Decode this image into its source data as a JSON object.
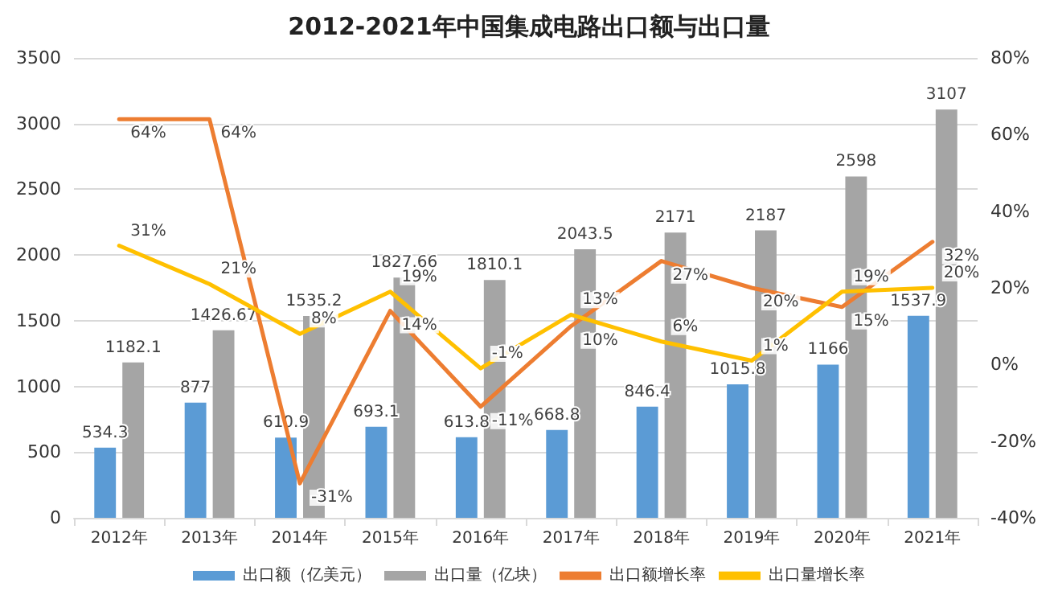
{
  "chart_data": {
    "type": "bar",
    "title": "2012-2021年中国集成电路出口额与出口量",
    "categories": [
      "2012年",
      "2013年",
      "2014年",
      "2015年",
      "2016年",
      "2017年",
      "2018年",
      "2019年",
      "2020年",
      "2021年"
    ],
    "series": [
      {
        "name": "出口额（亿美元）",
        "color": "#5b9bd5",
        "values": [
          534.3,
          877,
          610.9,
          693.1,
          613.8,
          668.8,
          846.4,
          1015.8,
          1166,
          1537.9
        ],
        "value_labels": [
          "534.3",
          "877",
          "610.9",
          "693.1",
          "613.8",
          "668.8",
          "846.4",
          "1015.8",
          "1166",
          "1537.9"
        ]
      },
      {
        "name": "出口量（亿块）",
        "color": "#a5a5a5",
        "values": [
          1182.1,
          1426.67,
          1535.2,
          1827.66,
          1810.1,
          2043.5,
          2171,
          2187,
          2598,
          3107
        ],
        "value_labels": [
          "1182.1",
          "1426.67",
          "1535.2",
          "1827.66",
          "1810.1",
          "2043.5",
          "2171",
          "2187",
          "2598",
          "3107"
        ]
      },
      {
        "name": "出口额增长率",
        "type": "line",
        "axis": "y2",
        "color": "#ed7d31",
        "values": [
          64,
          64,
          -31,
          14,
          -11,
          10,
          27,
          20,
          15,
          32
        ],
        "value_labels": [
          "64%",
          "64%",
          "-31%",
          "14%",
          "-11%",
          "10%",
          "27%",
          "20%",
          "15%",
          "32%"
        ]
      },
      {
        "name": "出口量增长率",
        "type": "line",
        "axis": "y2",
        "color": "#ffc000",
        "values": [
          31,
          21,
          8,
          19,
          -1,
          13,
          6,
          1,
          19,
          20
        ],
        "value_labels": [
          "31%",
          "21%",
          "8%",
          "19%",
          "-1%",
          "13%",
          "6%",
          "1%",
          "19%",
          "20%"
        ]
      }
    ],
    "ylim": [
      0,
      3500
    ],
    "yticks": [
      0,
      500,
      1000,
      1500,
      2000,
      2500,
      3000,
      3500
    ],
    "y2lim": [
      -40,
      80
    ],
    "y2ticks": [
      {
        "value": -40,
        "label": "-40%"
      },
      {
        "value": -20,
        "label": "-20%"
      },
      {
        "value": 0,
        "label": "0%"
      },
      {
        "value": 20,
        "label": "20%"
      },
      {
        "value": 40,
        "label": "40%"
      },
      {
        "value": 60,
        "label": "60%"
      },
      {
        "value": 80,
        "label": "80%"
      }
    ],
    "grid": "y",
    "legend": "bottom",
    "marker": "none",
    "line_style": "solid"
  }
}
